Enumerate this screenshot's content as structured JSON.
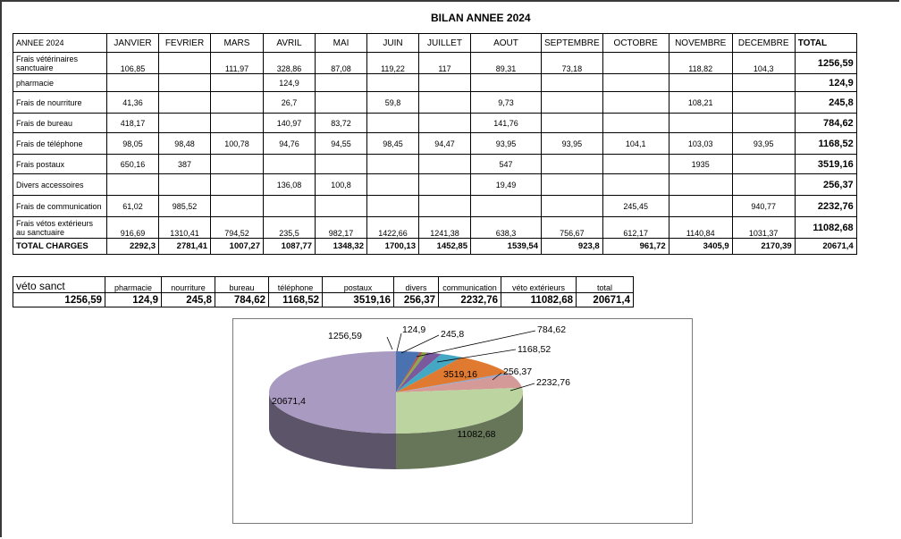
{
  "title": "BILAN ANNEE 2024",
  "table": {
    "headers": [
      "ANNEE 2024",
      "JANVIER",
      "FEVRIER",
      "MARS",
      "AVRIL",
      "MAI",
      "JUIN",
      "JUILLET",
      "AOUT",
      "SEPTEMBRE",
      "OCTOBRE",
      "NOVEMBRE",
      "DECEMBRE",
      "TOTAL"
    ],
    "rows": [
      {
        "label": "Frais vétérinaires sanctuaire",
        "cells": [
          "106,85",
          "",
          "111,97",
          "328,86",
          "87,08",
          "119,22",
          "117",
          "89,31",
          "73,18",
          "",
          "118,82",
          "104,3"
        ],
        "total": "1256,59"
      },
      {
        "label": "pharmacie",
        "cells": [
          "",
          "",
          "",
          "124,9",
          "",
          "",
          "",
          "",
          "",
          "",
          "",
          ""
        ],
        "total": "124,9"
      },
      {
        "label": "Frais de nourriture",
        "cells": [
          "41,36",
          "",
          "",
          "26,7",
          "",
          "59,8",
          "",
          "9,73",
          "",
          "",
          "108,21",
          ""
        ],
        "total": "245,8"
      },
      {
        "label": "Frais de bureau",
        "cells": [
          "418,17",
          "",
          "",
          "140,97",
          "83,72",
          "",
          "",
          "141,76",
          "",
          "",
          "",
          ""
        ],
        "total": "784,62"
      },
      {
        "label": "Frais de téléphone",
        "cells": [
          "98,05",
          "98,48",
          "100,78",
          "94,76",
          "94,55",
          "98,45",
          "94,47",
          "93,95",
          "93,95",
          "104,1",
          "103,03",
          "93,95"
        ],
        "total": "1168,52"
      },
      {
        "label": "Frais postaux",
        "cells": [
          "650,16",
          "387",
          "",
          "",
          "",
          "",
          "",
          "547",
          "",
          "",
          "1935",
          ""
        ],
        "total": "3519,16"
      },
      {
        "label": "Divers accessoires",
        "cells": [
          "",
          "",
          "",
          "136,08",
          "100,8",
          "",
          "",
          "19,49",
          "",
          "",
          "",
          ""
        ],
        "total": "256,37"
      },
      {
        "label": "Frais de communication",
        "cells": [
          "61,02",
          "985,52",
          "",
          "",
          "",
          "",
          "",
          "",
          "",
          "245,45",
          "",
          "940,77"
        ],
        "total": "2232,76"
      },
      {
        "label": "Frais vétos extérieurs au sanctuaire",
        "cells": [
          "916,69",
          "1310,41",
          "794,52",
          "235,5",
          "982,17",
          "1422,66",
          "1241,38",
          "638,3",
          "756,67",
          "612,17",
          "1140,84",
          "1031,37"
        ],
        "total": "11082,68"
      }
    ],
    "totals_row": {
      "label": "TOTAL CHARGES",
      "cells": [
        "2292,3",
        "2781,41",
        "1007,27",
        "1087,77",
        "1348,32",
        "1700,13",
        "1452,85",
        "1539,54",
        "923,8",
        "961,72",
        "3405,9",
        "2170,39"
      ],
      "total": "20671,4"
    }
  },
  "summary": {
    "headers": [
      "véto sanct",
      "pharmacie",
      "nourriture",
      "bureau",
      "téléphone",
      "postaux",
      "divers",
      "communication",
      "véto extérieurs",
      "total"
    ],
    "values": [
      "1256,59",
      "124,9",
      "245,8",
      "784,62",
      "1168,52",
      "3519,16",
      "256,37",
      "2232,76",
      "11082,68",
      "20671,4"
    ]
  },
  "chart_data": {
    "type": "pie",
    "style": "3d",
    "slices": [
      {
        "label": "1256,59",
        "value": 1256.59,
        "color": "#4a72b0"
      },
      {
        "label": "124,9",
        "value": 124.9,
        "color": "#b84a48"
      },
      {
        "label": "245,8",
        "value": 245.8,
        "color": "#8aa84c"
      },
      {
        "label": "784,62",
        "value": 784.62,
        "color": "#7a5a9c"
      },
      {
        "label": "1168,52",
        "value": 1168.52,
        "color": "#44a8c4"
      },
      {
        "label": "3519,16",
        "value": 3519.16,
        "color": "#e07a30"
      },
      {
        "label": "256,37",
        "value": 256.37,
        "color": "#8ea4cc"
      },
      {
        "label": "2232,76",
        "value": 2232.76,
        "color": "#d49a98"
      },
      {
        "label": "11082,68",
        "value": 11082.68,
        "color": "#bcd4a0"
      },
      {
        "label": "20671,4",
        "value": 20671.4,
        "color": "#a89ac0"
      }
    ]
  }
}
